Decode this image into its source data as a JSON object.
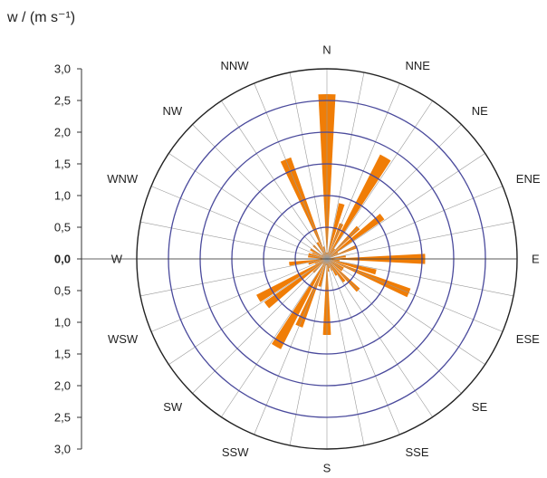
{
  "chart_data": {
    "type": "polar-bar",
    "y_axis_label": "w / (m s⁻¹)",
    "ylim": [
      0,
      3.0
    ],
    "tick_labels": [
      "3,0",
      "2,5",
      "2,0",
      "1,5",
      "1,0",
      "0,5",
      "0,0",
      "0,5",
      "1,0",
      "1,5",
      "2,0",
      "2,5",
      "3,0"
    ],
    "directions": [
      "N",
      "NNE",
      "NE",
      "ENE",
      "E",
      "ESE",
      "SE",
      "SSE",
      "S",
      "SSW",
      "SW",
      "WSW",
      "W",
      "WNW",
      "NW",
      "NNW"
    ],
    "series": [
      {
        "direction_angles_deg": [
          0,
          7.5,
          15,
          22.5,
          30,
          37.5,
          45,
          52.5,
          60,
          67.5,
          75,
          82.5,
          90,
          97.5,
          105,
          112.5,
          120,
          127.5,
          135,
          142.5,
          150,
          157.5,
          165,
          172.5,
          180,
          187.5,
          195,
          202.5,
          210,
          217.5,
          225,
          232.5,
          240,
          247.5,
          255,
          262.5,
          270,
          277.5,
          285,
          292.5,
          300,
          307.5,
          315,
          322.5,
          330,
          337.5,
          345,
          352.5
        ],
        "values": [
          2.6,
          0.1,
          0.9,
          0.6,
          1.85,
          0.2,
          0.7,
          1.1,
          0.2,
          0.5,
          0.05,
          0.3,
          1.55,
          0.2,
          0.8,
          1.4,
          0.3,
          0.3,
          0.7,
          0.45,
          0.3,
          0.2,
          0.15,
          0.2,
          1.2,
          0.1,
          0.45,
          1.15,
          1.6,
          0.1,
          0.3,
          1.2,
          1.25,
          0.2,
          0.3,
          0.6,
          0.1,
          0.3,
          0.3,
          0.25,
          0.3,
          0.1,
          0.3,
          0.1,
          0.3,
          1.7,
          0.2,
          0.1
        ],
        "color": "#f07d06"
      }
    ],
    "grid": true,
    "grid_color": "#4a4a9c",
    "bar_color": "#f07d06"
  }
}
